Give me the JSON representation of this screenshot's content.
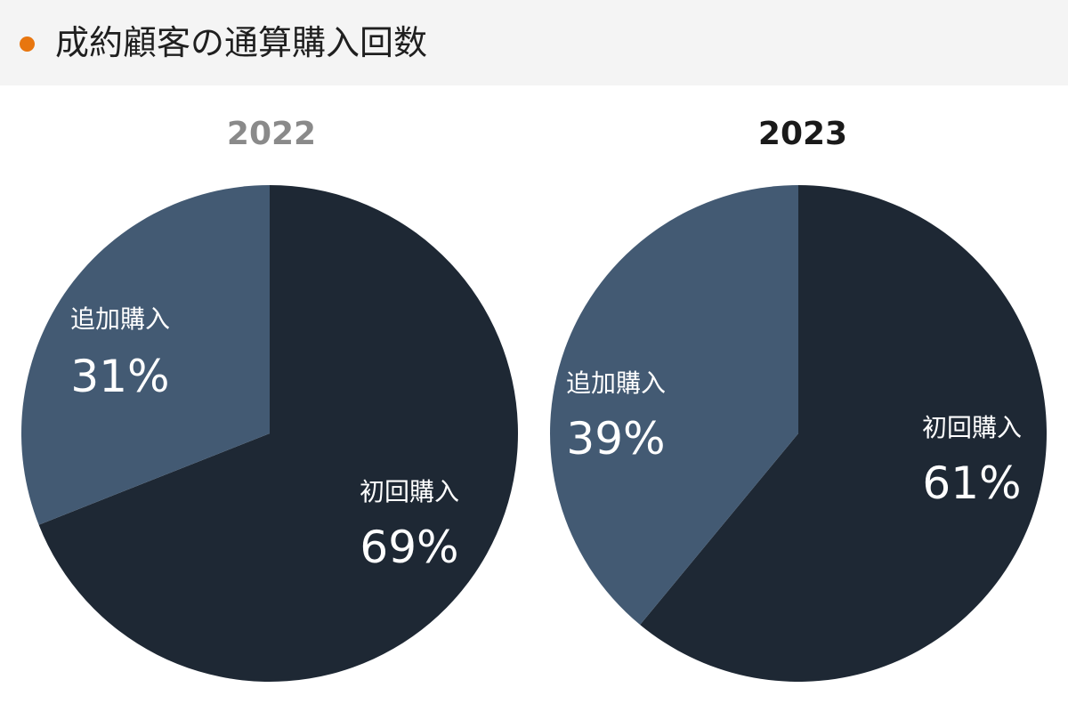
{
  "header": {
    "title": "成約顧客の通算購入回数",
    "dot_color": "#e8760f"
  },
  "colors": {
    "first_purchase": "#1e2834",
    "additional_purchase": "#435a73",
    "title_2022": "#8a8a8a",
    "title_2023": "#1a1a1a"
  },
  "chart_data": [
    {
      "type": "pie",
      "title": "2022",
      "slices": [
        {
          "label": "初回購入",
          "value": 69,
          "value_label": "69%"
        },
        {
          "label": "追加購入",
          "value": 31,
          "value_label": "31%"
        }
      ]
    },
    {
      "type": "pie",
      "title": "2023",
      "slices": [
        {
          "label": "初回購入",
          "value": 61,
          "value_label": "61%"
        },
        {
          "label": "追加購入",
          "value": 39,
          "value_label": "39%"
        }
      ]
    }
  ]
}
